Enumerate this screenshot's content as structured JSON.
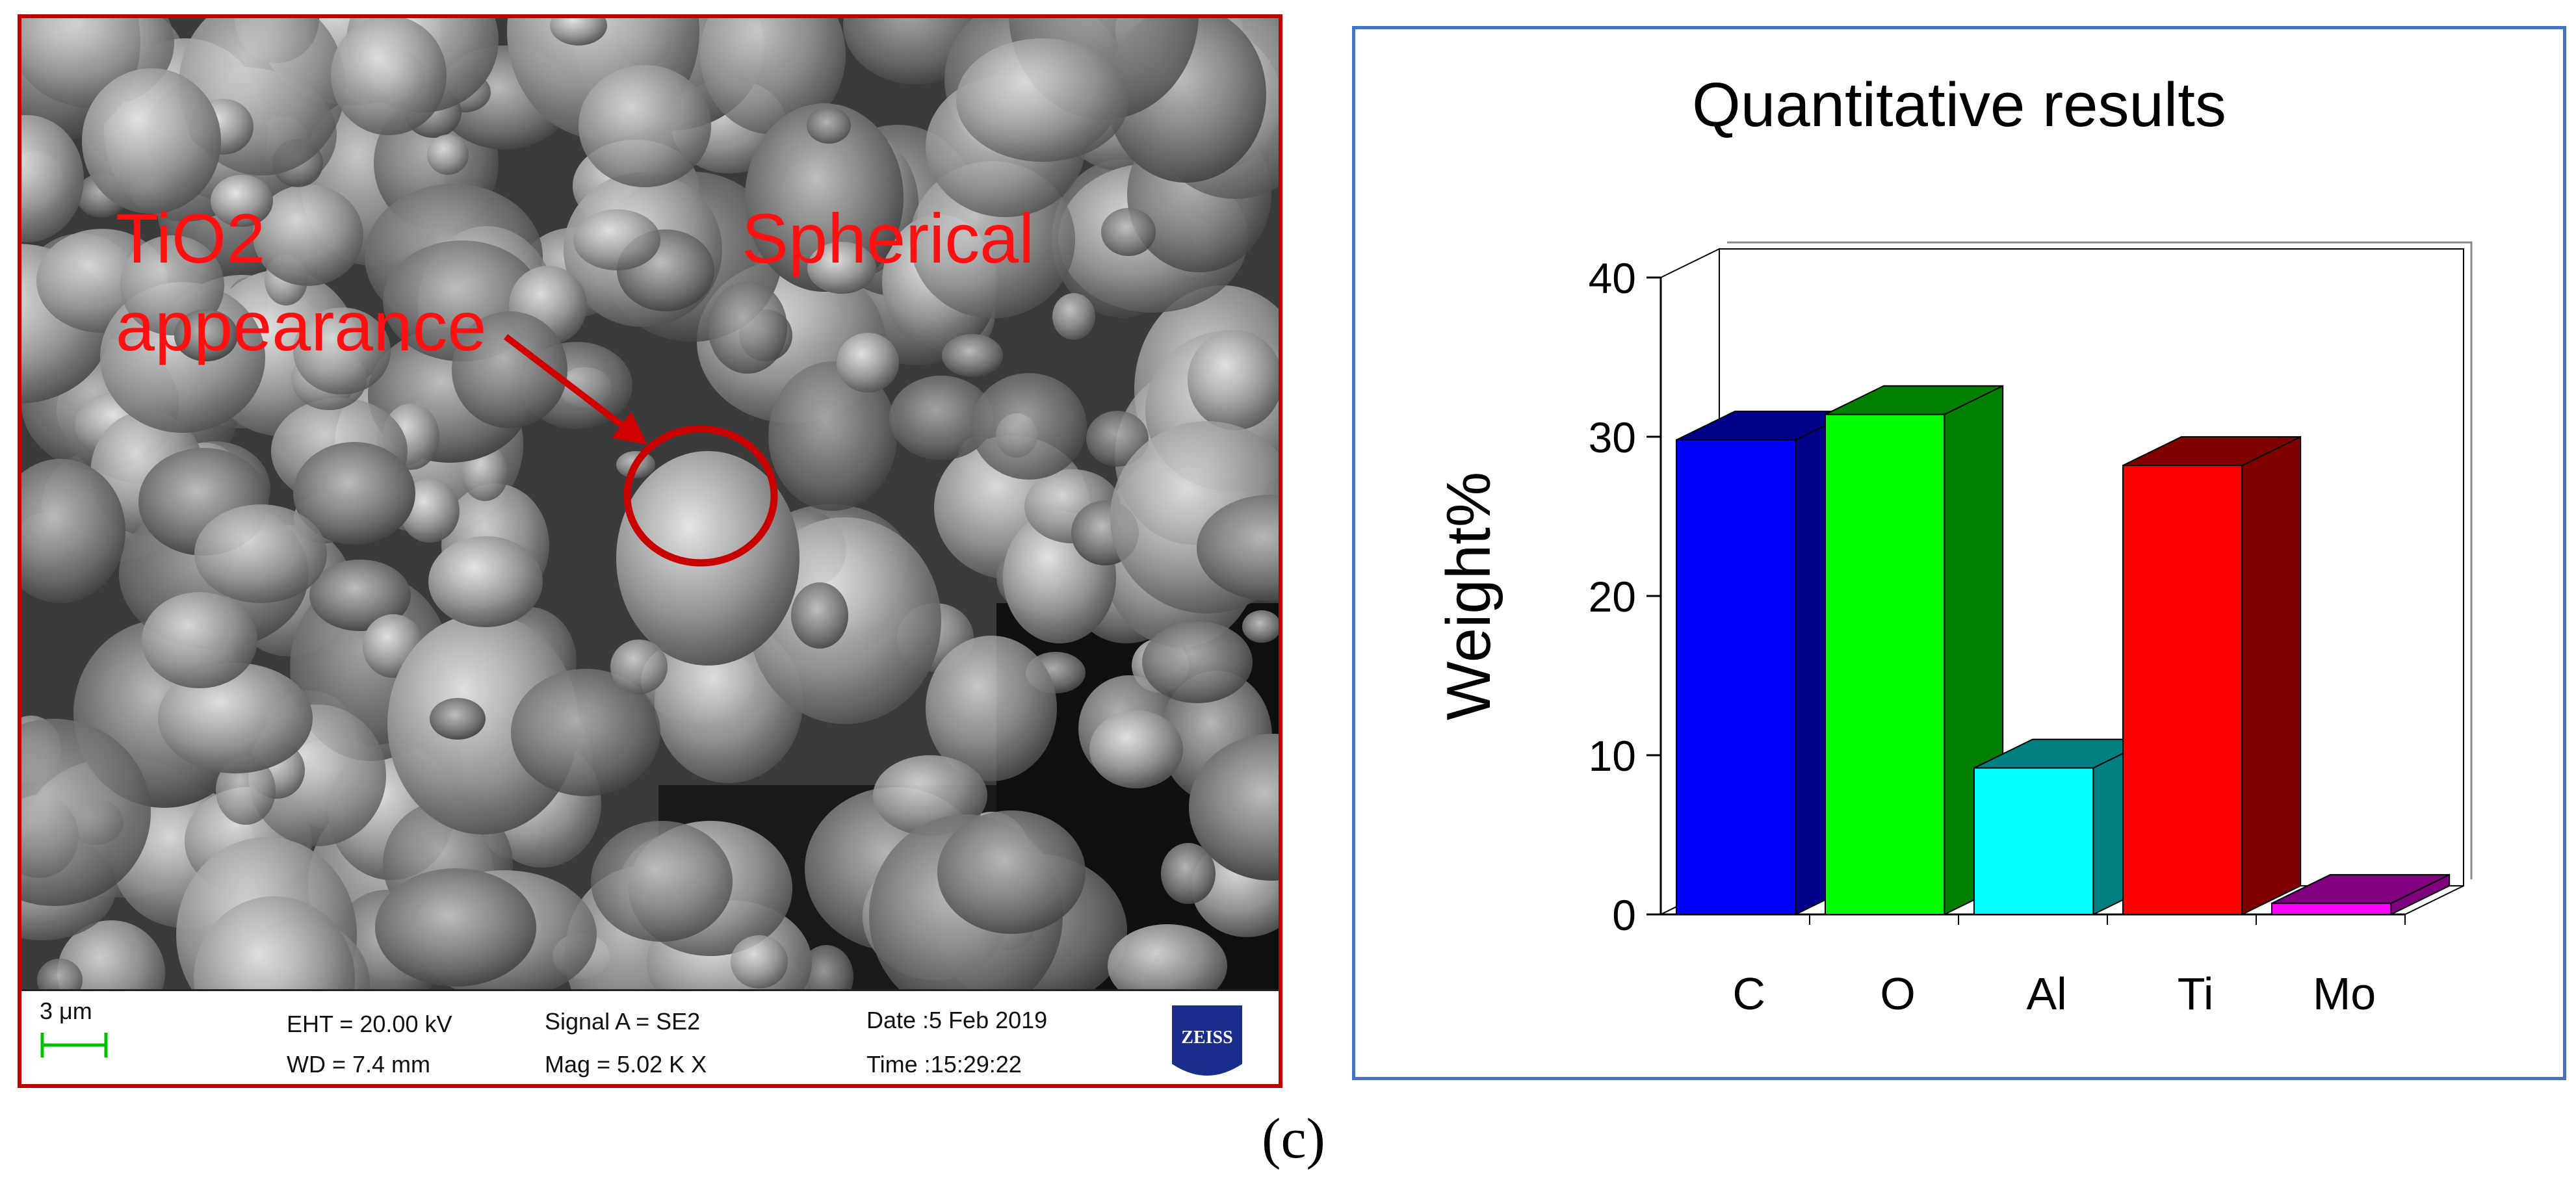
{
  "sem": {
    "annotations": {
      "line1": "TiO2",
      "line2": "appearance",
      "shape": "Spherical"
    },
    "scale_bar": "3 μm",
    "eht": "EHT = 20.00 kV",
    "wd": "WD =  7.4 mm",
    "signal": "Signal A = SE2",
    "mag": "Mag =   5.02 K X",
    "date": "Date :5 Feb 2019",
    "time": "Time :15:29:22",
    "logo_text": "ZEISS",
    "colors": {
      "annotation": "#ff1010",
      "frame": "#c00000",
      "logo": "#1a2c8c"
    }
  },
  "chart_data": {
    "type": "bar",
    "title": "Quantitative results",
    "xlabel": "",
    "ylabel": "Weight%",
    "ylim": [
      0,
      40
    ],
    "yticks": [
      0,
      10,
      20,
      30,
      40
    ],
    "categories": [
      "C",
      "O",
      "Al",
      "Ti",
      "Mo"
    ],
    "values": [
      29.8,
      31.4,
      9.2,
      28.2,
      0.7
    ],
    "colors": [
      "#0000ff",
      "#00ff00",
      "#00ffff",
      "#ff0000",
      "#ff00ff"
    ],
    "side_colors": [
      "#00008b",
      "#008000",
      "#008080",
      "#800000",
      "#800080"
    ],
    "style": "3d",
    "grid": false,
    "legend": "none"
  },
  "panel_label": "(c)"
}
